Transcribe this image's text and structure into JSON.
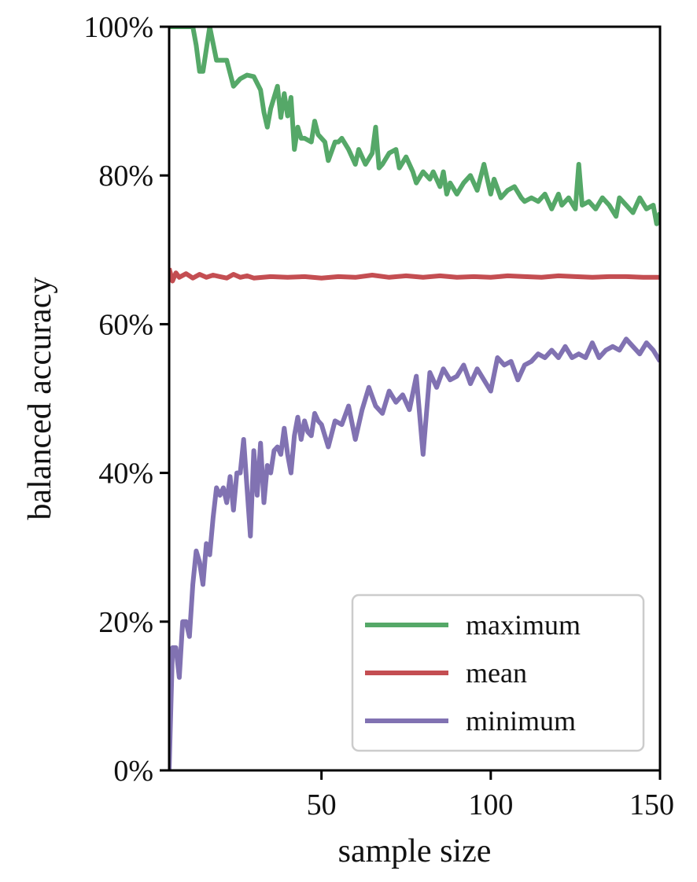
{
  "chart_data": {
    "type": "line",
    "xlabel": "sample size",
    "ylabel": "balanced accuracy",
    "xlim": [
      5,
      150
    ],
    "ylim": [
      0,
      100
    ],
    "x_ticks": [
      50,
      100,
      150
    ],
    "x_tick_labels": [
      "50",
      "100",
      "150"
    ],
    "y_ticks": [
      0,
      20,
      40,
      60,
      80,
      100
    ],
    "y_tick_labels": [
      "0%",
      "20%",
      "40%",
      "60%",
      "80%",
      "100%"
    ],
    "grid": false,
    "legend_position": "bottom-right",
    "series": [
      {
        "name": "maximum",
        "color": "#55a868",
        "x": [
          5,
          8,
          10,
          12,
          13,
          14,
          15,
          17,
          19,
          20,
          21,
          22,
          24,
          26,
          28,
          30,
          32,
          33,
          34,
          35,
          37,
          38,
          39,
          40,
          41,
          42,
          43,
          44,
          45,
          47,
          48,
          49,
          51,
          52,
          54,
          55,
          56,
          58,
          60,
          61,
          63,
          65,
          66,
          67,
          68,
          70,
          72,
          73,
          75,
          77,
          78,
          80,
          82,
          83,
          85,
          86,
          87,
          88,
          90,
          92,
          94,
          96,
          98,
          100,
          101,
          103,
          105,
          107,
          109,
          110,
          112,
          114,
          116,
          118,
          120,
          121,
          123,
          125,
          126,
          127,
          129,
          131,
          133,
          135,
          137,
          138,
          140,
          142,
          144,
          146,
          148,
          149,
          150
        ],
        "values": [
          100,
          100,
          100,
          100,
          97.5,
          94,
          94,
          100,
          95.5,
          95.5,
          95.5,
          95.5,
          92,
          93,
          93.5,
          93.3,
          91.5,
          88.5,
          86.5,
          89,
          92,
          87.8,
          91,
          88,
          90.5,
          83.5,
          86.5,
          85,
          85,
          84.5,
          87.3,
          85.5,
          84.5,
          82,
          84.5,
          84.5,
          85,
          83.5,
          81.5,
          83.5,
          81.5,
          83,
          86.5,
          81,
          81.5,
          83,
          83.5,
          81,
          82.5,
          80.5,
          79,
          80.5,
          79.5,
          80.5,
          78.5,
          80.5,
          77.5,
          79,
          77.5,
          79,
          80,
          78,
          81.5,
          77.5,
          79.5,
          77,
          78,
          78.5,
          77,
          76.5,
          77,
          76.5,
          77.5,
          75.5,
          77.5,
          76,
          77,
          75.5,
          81.5,
          76,
          76.5,
          75.5,
          77,
          76,
          74.5,
          77,
          76,
          75,
          77,
          75.5,
          76,
          73.5,
          75
        ]
      },
      {
        "name": "mean",
        "color": "#c44e52",
        "x": [
          5,
          6,
          7,
          8,
          10,
          12,
          14,
          16,
          18,
          20,
          22,
          24,
          26,
          28,
          30,
          35,
          40,
          45,
          50,
          55,
          60,
          65,
          70,
          75,
          80,
          85,
          90,
          95,
          100,
          105,
          110,
          115,
          120,
          125,
          130,
          135,
          140,
          145,
          150
        ],
        "values": [
          67.5,
          65.8,
          66.9,
          66.3,
          66.8,
          66.2,
          66.7,
          66.3,
          66.6,
          66.4,
          66.2,
          66.7,
          66.3,
          66.5,
          66.2,
          66.4,
          66.3,
          66.4,
          66.2,
          66.4,
          66.3,
          66.6,
          66.3,
          66.5,
          66.3,
          66.5,
          66.3,
          66.4,
          66.3,
          66.5,
          66.4,
          66.3,
          66.5,
          66.4,
          66.3,
          66.4,
          66.4,
          66.3,
          66.3
        ]
      },
      {
        "name": "minimum",
        "color": "#8172b2",
        "x": [
          5,
          6,
          7,
          8,
          9,
          10,
          11,
          12,
          13,
          14,
          15,
          16,
          17,
          18,
          19,
          20,
          21,
          22,
          23,
          24,
          25,
          26,
          27,
          28,
          29,
          30,
          31,
          32,
          33,
          34,
          35,
          36,
          37,
          38,
          39,
          40,
          41,
          42,
          43,
          44,
          45,
          46,
          47,
          48,
          49,
          50,
          52,
          54,
          56,
          58,
          60,
          62,
          64,
          66,
          68,
          70,
          72,
          74,
          76,
          78,
          80,
          82,
          84,
          86,
          88,
          90,
          92,
          94,
          96,
          98,
          100,
          102,
          104,
          106,
          108,
          110,
          112,
          114,
          116,
          118,
          120,
          122,
          124,
          126,
          128,
          130,
          132,
          134,
          136,
          138,
          140,
          142,
          144,
          146,
          148,
          150
        ],
        "values": [
          0,
          16.5,
          16.5,
          12.5,
          20,
          20,
          18,
          25,
          29.5,
          28,
          25,
          30.5,
          29,
          34,
          38,
          37,
          38,
          36,
          39.5,
          35,
          40,
          40,
          44.5,
          38,
          31.5,
          43,
          37,
          44,
          36,
          41,
          40,
          43,
          43.5,
          42.5,
          46,
          42.5,
          40,
          45,
          47.5,
          44.5,
          47,
          45.5,
          45,
          48,
          47,
          46.5,
          43.5,
          47,
          46.5,
          49,
          44.5,
          48.5,
          51.5,
          49,
          48,
          51,
          49.5,
          50.5,
          48.5,
          53,
          42.5,
          53.5,
          51.5,
          54,
          52.5,
          53,
          54.5,
          52,
          54,
          52.5,
          51,
          55.5,
          54.5,
          55,
          52.5,
          54.5,
          55,
          56,
          55.5,
          56.5,
          55.5,
          57,
          55.5,
          56,
          55.5,
          57.5,
          55.5,
          56.5,
          57,
          56.5,
          58,
          57,
          56,
          57.5,
          56.5,
          55
        ]
      }
    ]
  }
}
